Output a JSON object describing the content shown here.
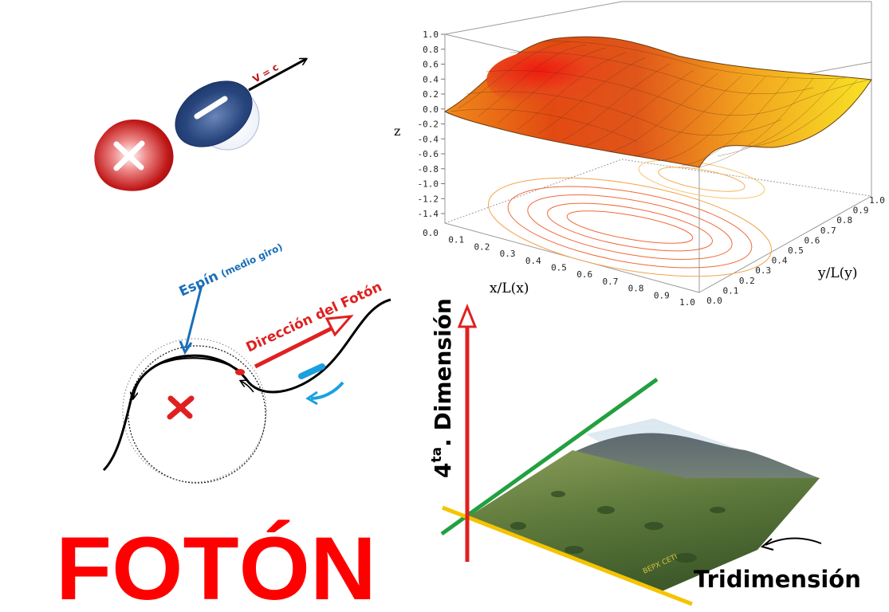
{
  "dipole": {
    "velocity_label": "V = c",
    "positive_symbol": "+",
    "negative_symbol": "−"
  },
  "spin_diagram": {
    "spin_label": "Espín",
    "spin_note": "(medio giro)",
    "direction_label": "Dirección del Fotón"
  },
  "title": "FOTÓN",
  "surface_plot": {
    "z_label": "z",
    "x_label": "x/L(x)",
    "y_label": "y/L(y)",
    "z_ticks": [
      "1.0",
      "0.8",
      "0.6",
      "0.4",
      "0.2",
      "0.0",
      "-0.2",
      "-0.4",
      "-0.6",
      "-0.8",
      "-1.0",
      "-1.2",
      "-1.4"
    ],
    "x_ticks": [
      "0.0",
      "0.1",
      "0.2",
      "0.3",
      "0.4",
      "0.5",
      "0.6",
      "0.7",
      "0.8",
      "0.9",
      "1.0"
    ],
    "y_ticks": [
      "0.0",
      "0.1",
      "0.2",
      "0.3",
      "0.4",
      "0.5",
      "0.6",
      "0.7",
      "0.8",
      "0.9",
      "1.0"
    ]
  },
  "dimension_diagram": {
    "fourth_prefix": "4",
    "fourth_sup": "ta",
    "fourth_rest": ". Dimensión",
    "three_d_label": "Tridimensión",
    "photo_watermark": "ВЕРХ СЕТІ"
  },
  "colors": {
    "title_red": "#ff0000",
    "arrow_red": "#e02020",
    "spin_blue": "#1a6fb8",
    "cyan": "#1aa0e0",
    "green_axis": "#22a040",
    "yellow_axis": "#f5c400"
  }
}
